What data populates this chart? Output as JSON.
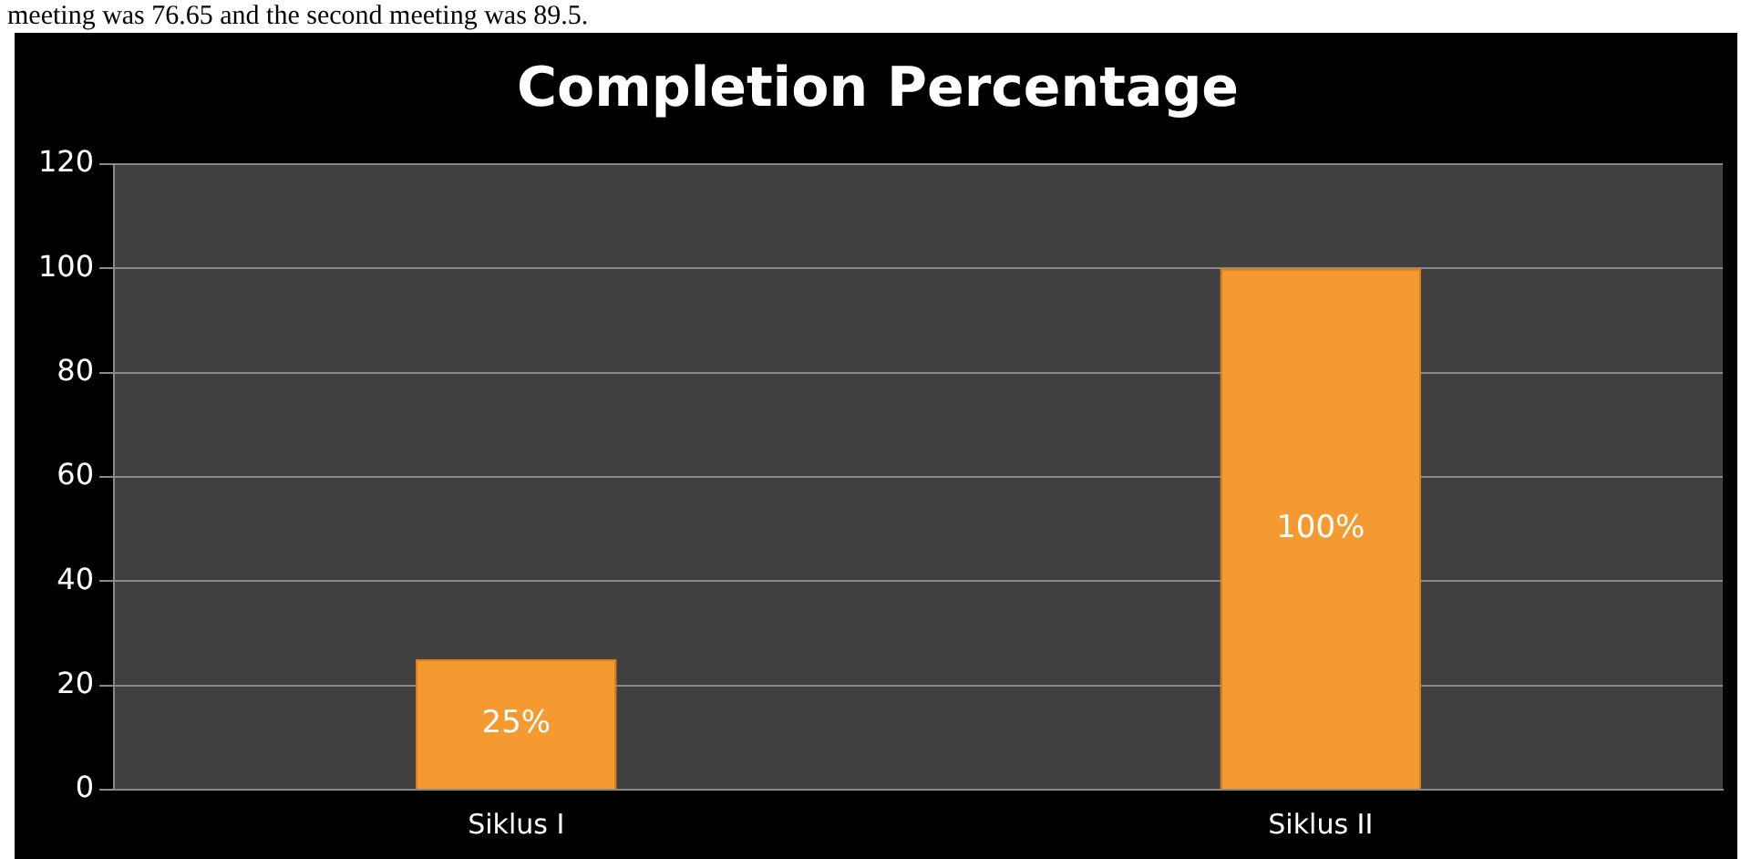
{
  "chart_data": {
    "type": "bar",
    "title": "Completion Percentage",
    "categories": [
      "Siklus I",
      "Siklus II"
    ],
    "values": [
      25,
      100
    ],
    "color": "#f59a30",
    "value_labels": [
      "25%",
      "100%"
    ],
    "ylim": [
      0,
      120
    ],
    "yticks": [
      0,
      20,
      40,
      60,
      80,
      100,
      120
    ],
    "grid": "y",
    "annotations": [
      "meeting was 76.65 and the second meeting was 89.5."
    ]
  }
}
